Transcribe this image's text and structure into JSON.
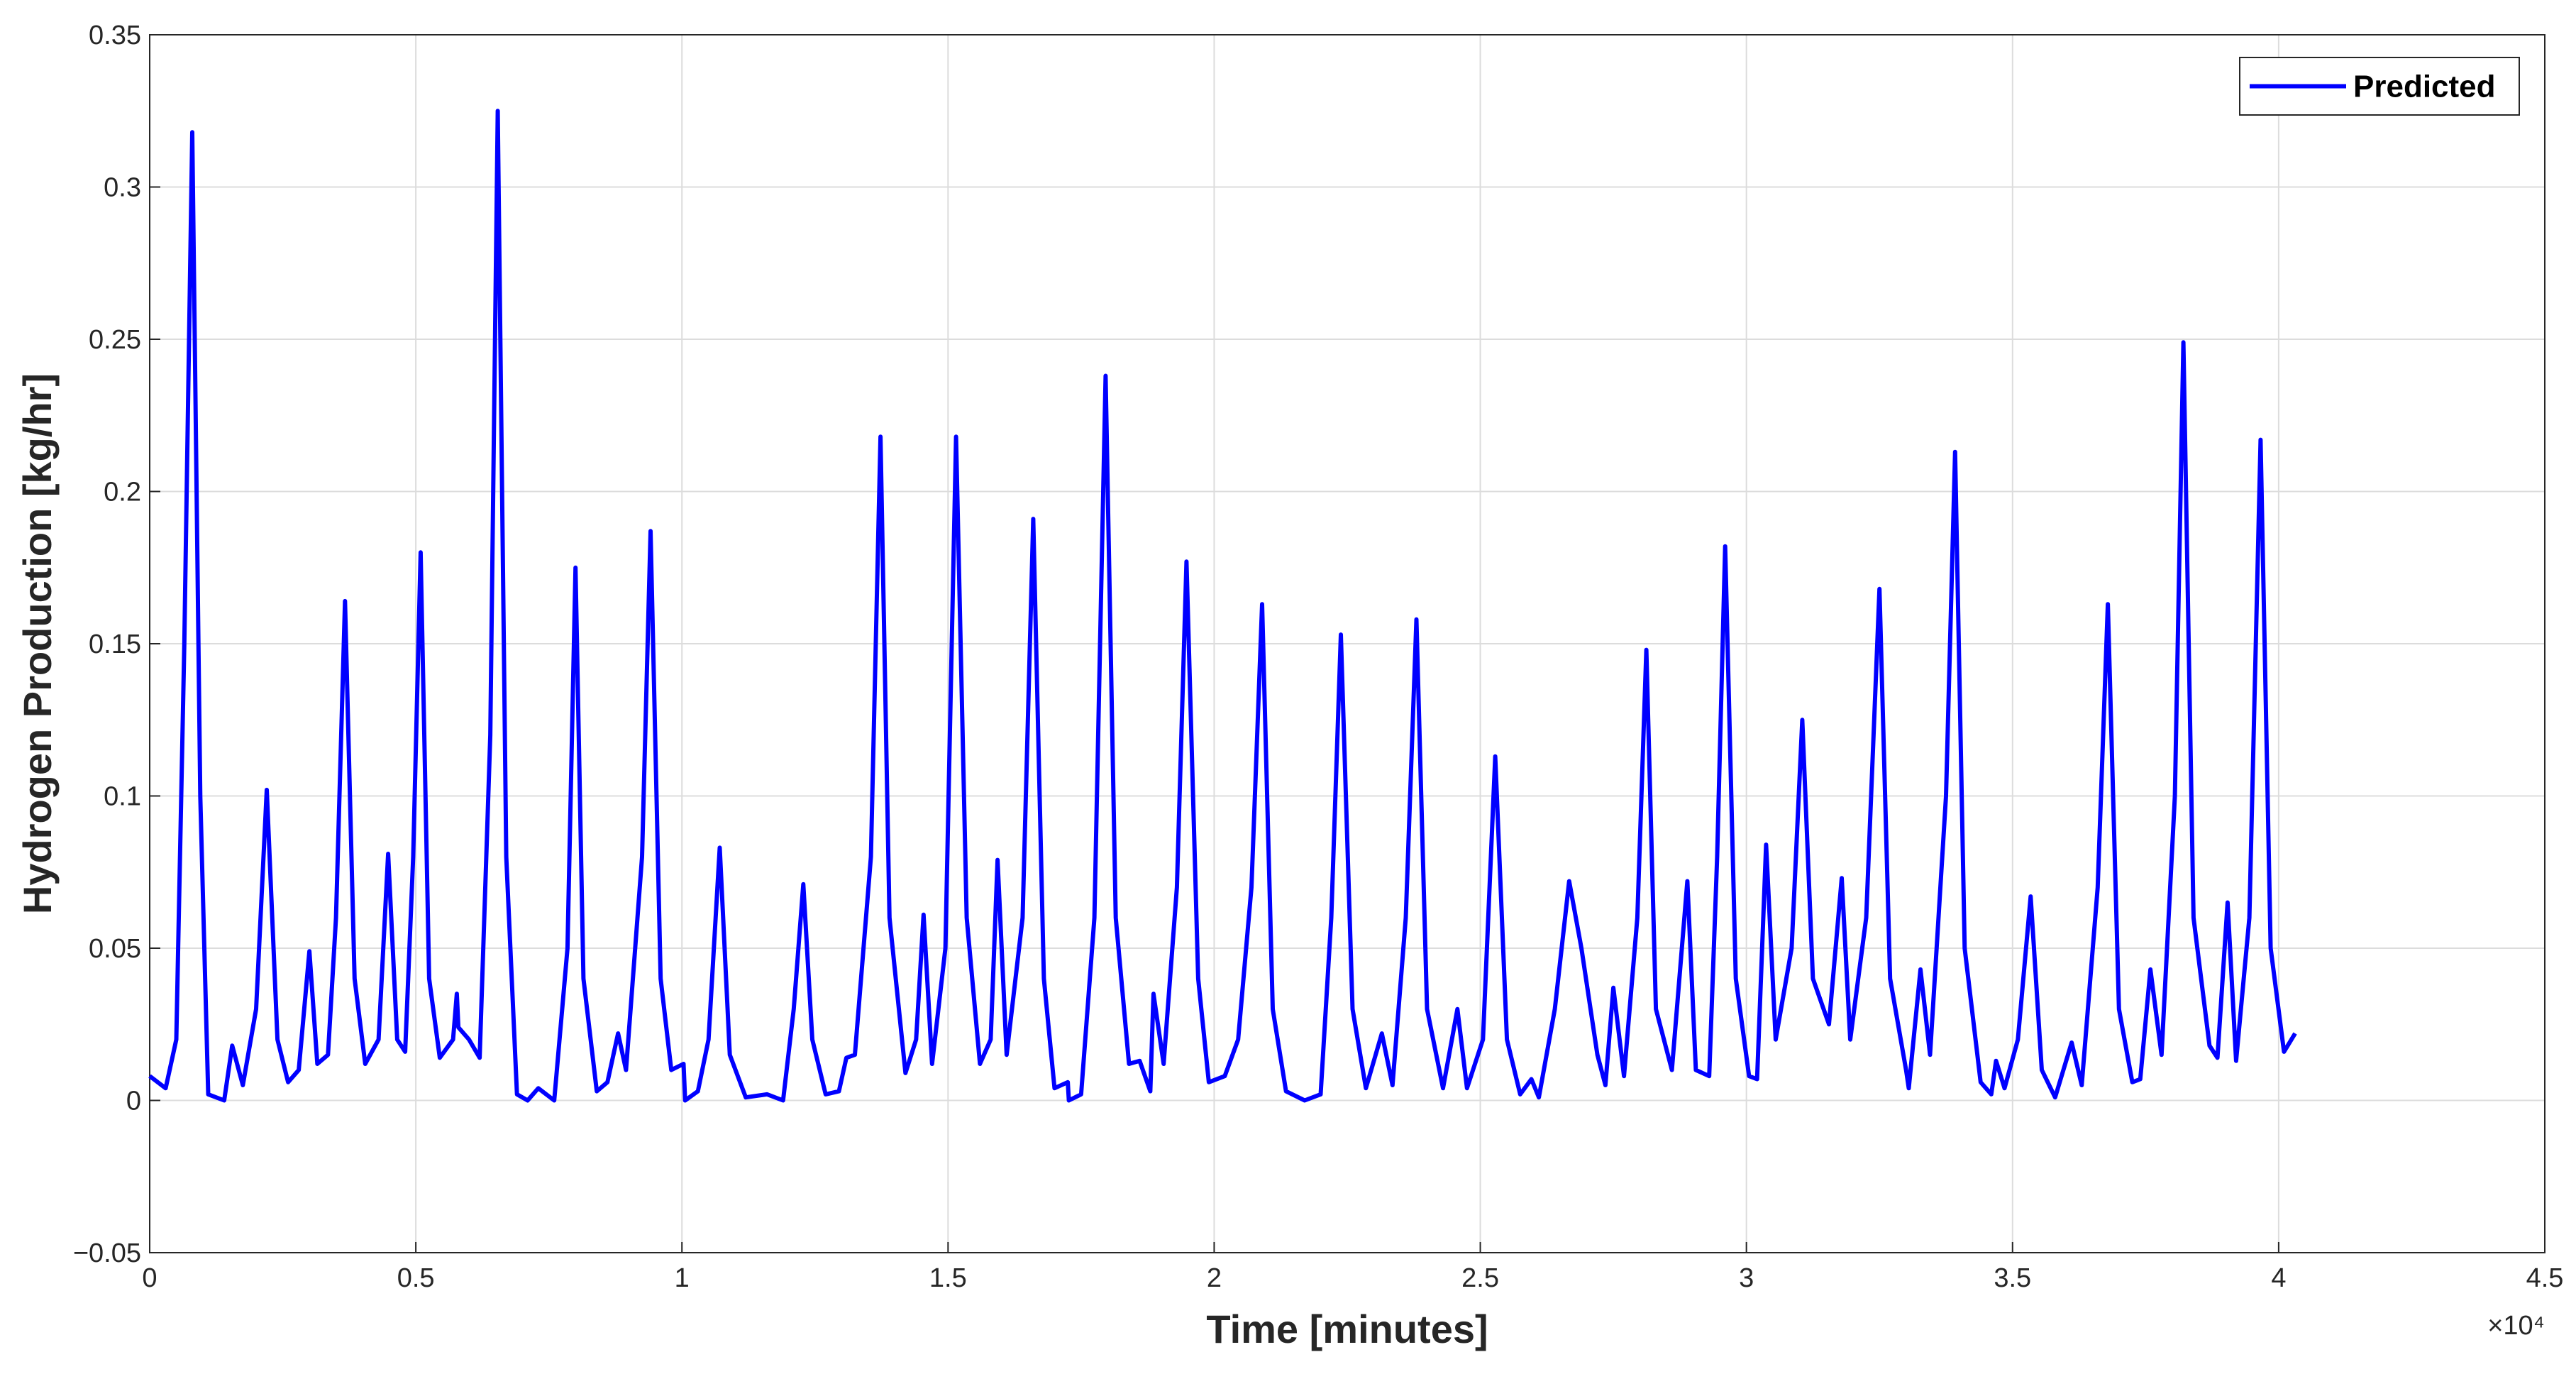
{
  "chart_data": {
    "type": "line",
    "x_label": "Time [minutes]",
    "y_label": "Hydrogen Production [kg/hr]",
    "x_exponent_label": "×10⁴",
    "grid": true,
    "legend": "upper right",
    "xlim": [
      0,
      45000
    ],
    "xticks": [
      0,
      {
        "value": 5000,
        "label": "0.5"
      },
      {
        "value": 10000,
        "label": "1"
      },
      {
        "value": 15000,
        "label": "1.5"
      },
      {
        "value": 20000,
        "label": "2"
      },
      {
        "value": 25000,
        "label": "2.5"
      },
      {
        "value": 30000,
        "label": "3"
      },
      {
        "value": 35000,
        "label": "3.5"
      },
      {
        "value": 40000,
        "label": "4"
      },
      {
        "value": 45000,
        "label": "4.5"
      }
    ],
    "ylim": [
      -0.05,
      0.35
    ],
    "yticks": [
      {
        "value": -0.05,
        "label": "−0.05"
      },
      0,
      0.05,
      0.1,
      0.15,
      0.2,
      0.25,
      0.3,
      0.35
    ],
    "x": [
      0,
      300,
      500,
      650,
      800,
      950,
      1100,
      1400,
      1550,
      1750,
      2000,
      2200,
      2400,
      2600,
      2800,
      3000,
      3150,
      3350,
      3500,
      3670,
      3850,
      4050,
      4300,
      4480,
      4650,
      4800,
      4950,
      5090,
      5250,
      5450,
      5700,
      5770,
      5800,
      6000,
      6200,
      6400,
      6540,
      6700,
      6900,
      7100,
      7300,
      7600,
      7850,
      8000,
      8150,
      8400,
      8600,
      8800,
      8950,
      9250,
      9410,
      9600,
      9800,
      10030,
      10060,
      10300,
      10500,
      10710,
      10900,
      11200,
      11600,
      11900,
      12100,
      12280,
      12450,
      12700,
      12950,
      13090,
      13250,
      13550,
      13730,
      13900,
      14200,
      14400,
      14540,
      14700,
      14950,
      15150,
      15350,
      15600,
      15800,
      15930,
      16100,
      16400,
      16600,
      16800,
      17000,
      17250,
      17270,
      17500,
      17750,
      17960,
      18150,
      18400,
      18600,
      18800,
      18860,
      19050,
      19300,
      19480,
      19700,
      19900,
      20200,
      20450,
      20700,
      20900,
      21100,
      21350,
      21700,
      22000,
      22200,
      22380,
      22600,
      22850,
      23150,
      23350,
      23600,
      23800,
      24000,
      24300,
      24570,
      24750,
      25050,
      25280,
      25500,
      25750,
      25960,
      26100,
      26400,
      26670,
      26900,
      27200,
      27350,
      27500,
      27700,
      27950,
      28120,
      28300,
      28600,
      28890,
      29050,
      29300,
      29450,
      29600,
      29800,
      30050,
      30200,
      30370,
      30550,
      30850,
      31050,
      31250,
      31550,
      31790,
      31950,
      32250,
      32500,
      32700,
      33000,
      33050,
      33270,
      33450,
      33750,
      33920,
      34100,
      34400,
      34600,
      34690,
      34850,
      35100,
      35340,
      35550,
      35800,
      36110,
      36300,
      36600,
      36790,
      37000,
      37250,
      37400,
      37590,
      37800,
      38050,
      38210,
      38400,
      38700,
      38850,
      39040,
      39200,
      39450,
      39660,
      39850,
      40100,
      40310
    ],
    "series": [
      {
        "name": "Predicted",
        "color": "#0000ff",
        "values": [
          0.008,
          0.004,
          0.02,
          0.15,
          0.318,
          0.1,
          0.002,
          0,
          0.018,
          0.005,
          0.03,
          0.102,
          0.02,
          0.006,
          0.01,
          0.049,
          0.012,
          0.015,
          0.06,
          0.164,
          0.04,
          0.012,
          0.02,
          0.081,
          0.02,
          0.016,
          0.08,
          0.18,
          0.04,
          0.014,
          0.02,
          0.035,
          0.024,
          0.02,
          0.014,
          0.12,
          0.325,
          0.08,
          0.002,
          0,
          0.004,
          0,
          0.05,
          0.175,
          0.04,
          0.003,
          0.006,
          0.022,
          0.01,
          0.08,
          0.187,
          0.04,
          0.01,
          0.012,
          0,
          0.003,
          0.02,
          0.083,
          0.015,
          0.001,
          0.002,
          0,
          0.03,
          0.071,
          0.02,
          0.002,
          0.003,
          0.014,
          0.015,
          0.08,
          0.218,
          0.06,
          0.009,
          0.02,
          0.061,
          0.012,
          0.05,
          0.218,
          0.06,
          0.012,
          0.02,
          0.079,
          0.015,
          0.06,
          0.191,
          0.04,
          0.004,
          0.006,
          0,
          0.002,
          0.06,
          0.238,
          0.06,
          0.012,
          0.013,
          0.003,
          0.035,
          0.012,
          0.07,
          0.177,
          0.04,
          0.006,
          0.008,
          0.02,
          0.07,
          0.163,
          0.03,
          0.003,
          0,
          0.002,
          0.06,
          0.153,
          0.03,
          0.004,
          0.022,
          0.005,
          0.06,
          0.158,
          0.03,
          0.004,
          0.03,
          0.004,
          0.02,
          0.113,
          0.02,
          0.002,
          0.007,
          0.001,
          0.03,
          0.072,
          0.05,
          0.015,
          0.005,
          0.037,
          0.008,
          0.06,
          0.148,
          0.03,
          0.01,
          0.072,
          0.01,
          0.008,
          0.08,
          0.182,
          0.04,
          0.008,
          0.007,
          0.084,
          0.02,
          0.05,
          0.125,
          0.04,
          0.025,
          0.073,
          0.02,
          0.06,
          0.168,
          0.04,
          0.01,
          0.004,
          0.043,
          0.015,
          0.1,
          0.213,
          0.05,
          0.006,
          0.002,
          0.013,
          0.004,
          0.02,
          0.067,
          0.01,
          0.001,
          0.019,
          0.005,
          0.07,
          0.163,
          0.03,
          0.006,
          0.007,
          0.043,
          0.015,
          0.1,
          0.249,
          0.06,
          0.018,
          0.014,
          0.065,
          0.013,
          0.06,
          0.217,
          0.05,
          0.016,
          0.022
        ]
      }
    ]
  }
}
